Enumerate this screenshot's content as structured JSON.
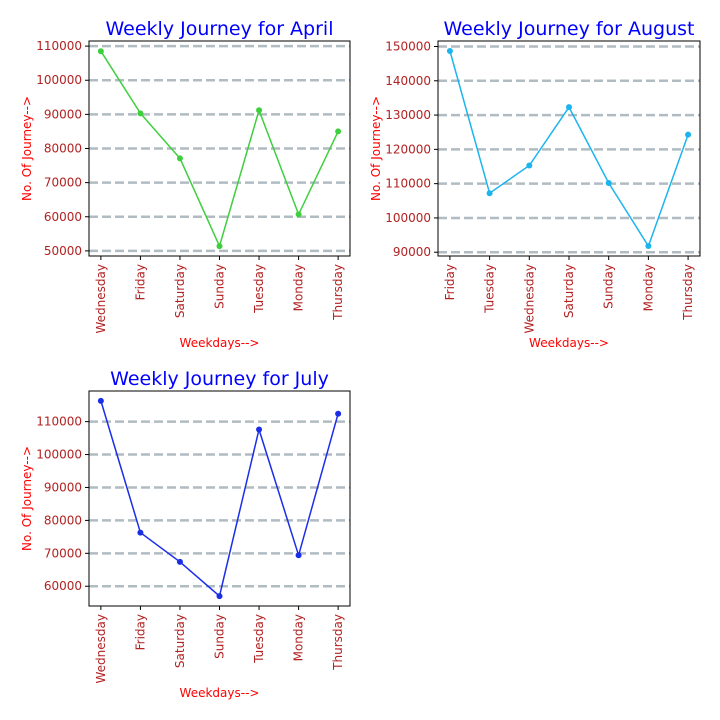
{
  "chart_data": [
    {
      "type": "line",
      "title": "Weekly Journey for April",
      "xlabel": "Weekdays-->",
      "ylabel": "No. Of Journey-->",
      "categories": [
        "Wednesday",
        "Friday",
        "Saturday",
        "Sunday",
        "Tuesday",
        "Monday",
        "Thursday"
      ],
      "values": [
        108500,
        90300,
        77100,
        51400,
        91200,
        60700,
        85000
      ],
      "ylim": [
        48500,
        111500
      ],
      "yticks": [
        50000,
        60000,
        70000,
        80000,
        90000,
        100000,
        110000
      ],
      "grid": true,
      "color": "#3ecf3e"
    },
    {
      "type": "line",
      "title": "Weekly Journey for August",
      "xlabel": "Weekdays-->",
      "ylabel": "No. Of Journey-->",
      "categories": [
        "Friday",
        "Tuesday",
        "Wednesday",
        "Saturday",
        "Sunday",
        "Monday",
        "Thursday"
      ],
      "values": [
        148700,
        107200,
        115300,
        132300,
        110200,
        91800,
        124300
      ],
      "ylim": [
        88900,
        151600
      ],
      "yticks": [
        90000,
        100000,
        110000,
        120000,
        130000,
        140000,
        150000
      ],
      "grid": true,
      "color": "#1bb4ee"
    },
    {
      "type": "line",
      "title": "Weekly Journey for July",
      "xlabel": "Weekdays-->",
      "ylabel": "No. Of Journey-->",
      "categories": [
        "Wednesday",
        "Friday",
        "Saturday",
        "Sunday",
        "Tuesday",
        "Monday",
        "Thursday"
      ],
      "values": [
        116300,
        76300,
        67400,
        57000,
        107600,
        69400,
        112400
      ],
      "ylim": [
        54000,
        119300
      ],
      "yticks": [
        60000,
        70000,
        80000,
        90000,
        100000,
        110000
      ],
      "grid": true,
      "color": "#1a2ee8"
    }
  ]
}
